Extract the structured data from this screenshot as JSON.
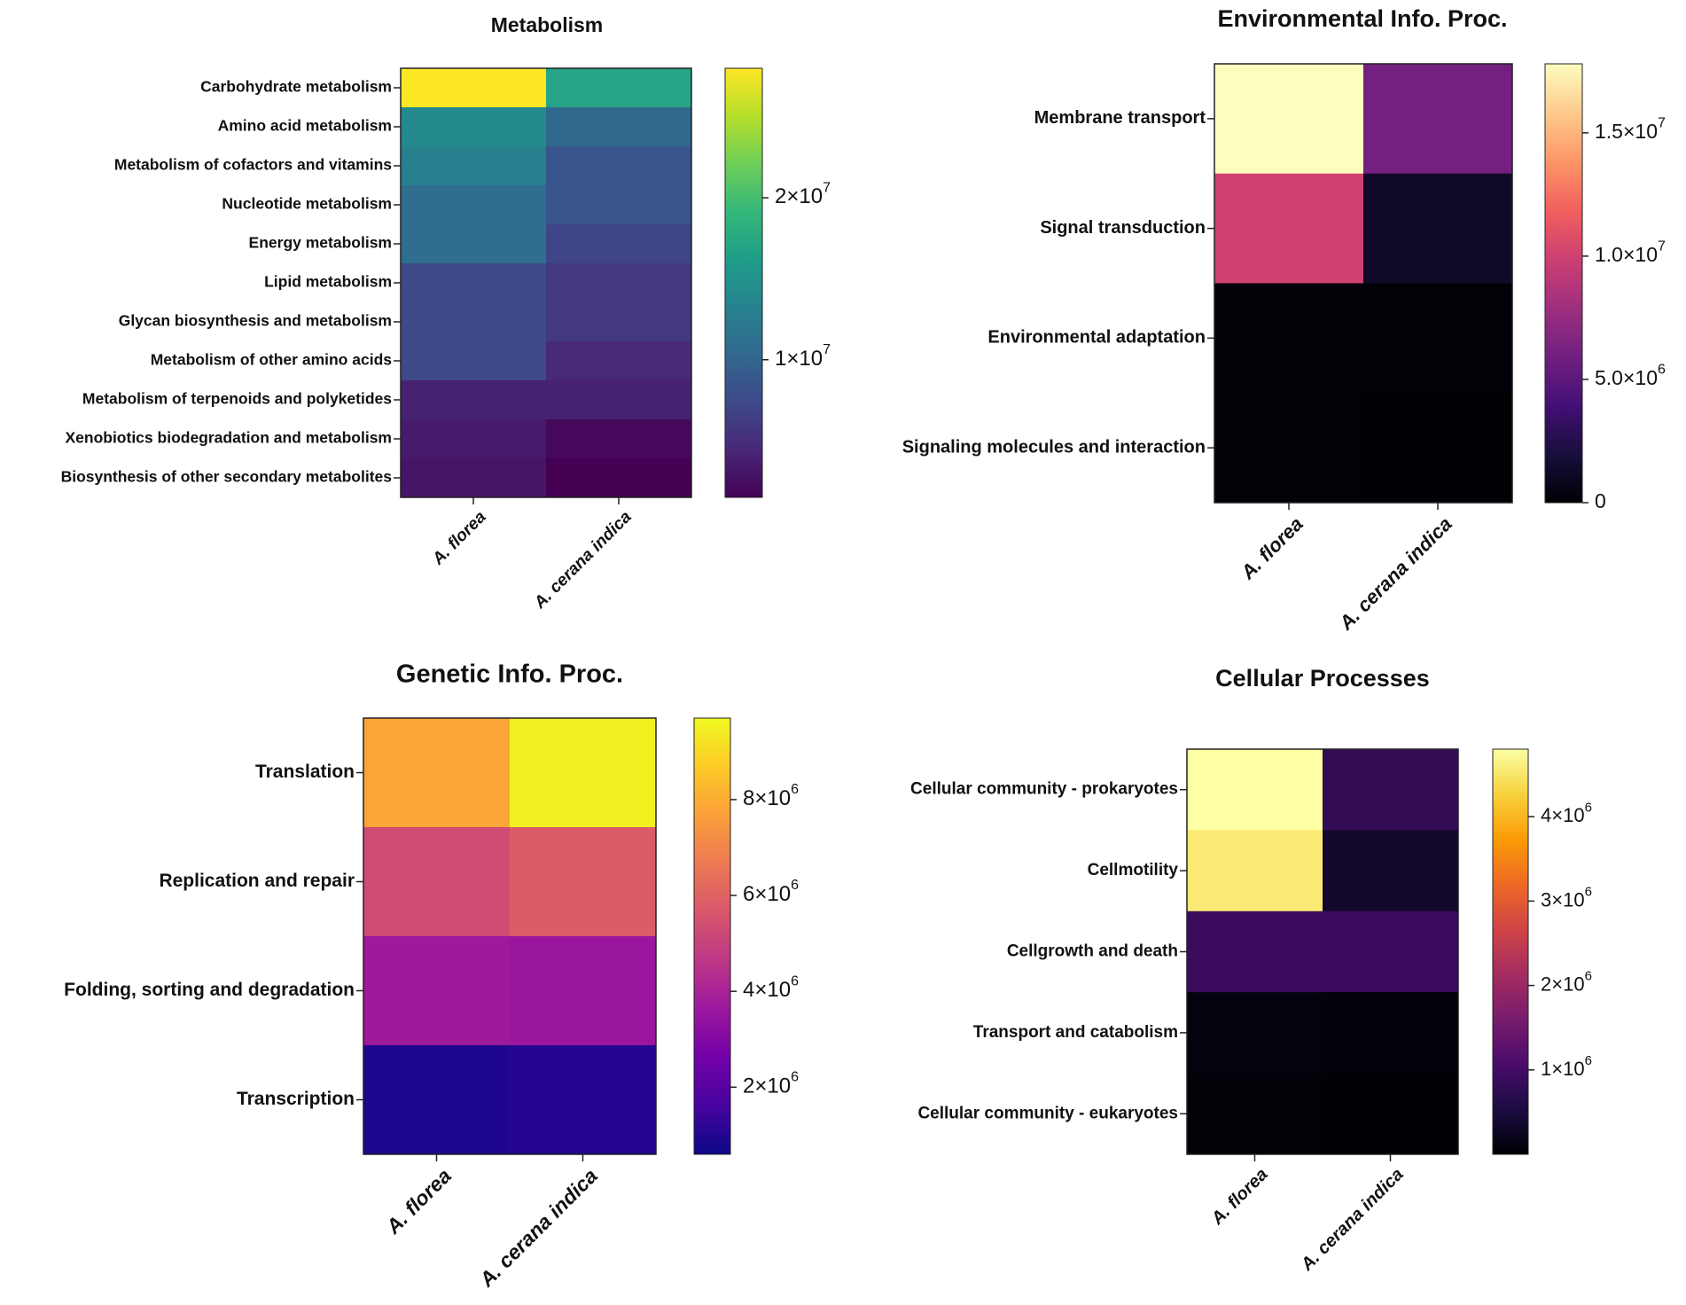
{
  "chart_data": [
    {
      "type": "heatmap",
      "title": "Metabolism",
      "columns": [
        "A. florea",
        "A. cerana indica"
      ],
      "rows": [
        "Carbohydrate metabolism",
        "Amino acid metabolism",
        "Metabolism of cofactors and vitamins",
        "Nucleotide metabolism",
        "Energy metabolism",
        "Lipid metabolism",
        "Glycan biosynthesis and metabolism",
        "Metabolism of other amino acids",
        "Metabolism of terpenoids and polyketides",
        "Xenobiotics biodegradation and metabolism",
        "Biosynthesis of other secondary metabolites"
      ],
      "values": [
        [
          28000000,
          17000000
        ],
        [
          14000000,
          10500000
        ],
        [
          13000000,
          8500000
        ],
        [
          11000000,
          8500000
        ],
        [
          11000000,
          7000000
        ],
        [
          7500000,
          6000000
        ],
        [
          7500000,
          6000000
        ],
        [
          7500000,
          4500000
        ],
        [
          4000000,
          4000000
        ],
        [
          3500000,
          2000000
        ],
        [
          3000000,
          1500000
        ]
      ],
      "colormap": "viridis",
      "colorbar": {
        "range": [
          1500000,
          28000000
        ],
        "ticks": [
          {
            "value": 10000000,
            "label": "1×10",
            "exp": "7"
          },
          {
            "value": 20000000,
            "label": "2×10",
            "exp": "7"
          }
        ]
      }
    },
    {
      "type": "heatmap",
      "title": "Environmental Info. Proc.",
      "columns": [
        "A. florea",
        "A. cerana indica"
      ],
      "rows": [
        "Membrane transport",
        "Signal transduction",
        "Environmental adaptation",
        "Signaling molecules and interaction"
      ],
      "values": [
        [
          17800000,
          6000000
        ],
        [
          10000000,
          1300000
        ],
        [
          150000,
          100000
        ],
        [
          80000,
          50000
        ]
      ],
      "colormap": "magma",
      "colorbar": {
        "range": [
          0,
          17800000
        ],
        "ticks": [
          {
            "value": 0,
            "label": "0",
            "exp": ""
          },
          {
            "value": 5000000,
            "label": "5.0×10",
            "exp": "6"
          },
          {
            "value": 10000000,
            "label": "1.0×10",
            "exp": "7"
          },
          {
            "value": 15000000,
            "label": "1.5×10",
            "exp": "7"
          }
        ]
      }
    },
    {
      "type": "heatmap",
      "title": "Genetic Info. Proc.",
      "columns": [
        "A. florea",
        "A. cerana indica"
      ],
      "rows": [
        "Translation",
        "Replication and repair",
        "Folding, sorting and degradation",
        "Transcription"
      ],
      "values": [
        [
          7800000,
          9500000
        ],
        [
          5300000,
          5800000
        ],
        [
          3700000,
          3600000
        ],
        [
          900000,
          1000000
        ]
      ],
      "colormap": "plasma",
      "colorbar": {
        "range": [
          600000,
          9700000
        ],
        "ticks": [
          {
            "value": 2000000,
            "label": "2×10",
            "exp": "6"
          },
          {
            "value": 4000000,
            "label": "4×10",
            "exp": "6"
          },
          {
            "value": 6000000,
            "label": "6×10",
            "exp": "6"
          },
          {
            "value": 8000000,
            "label": "8×10",
            "exp": "6"
          }
        ]
      }
    },
    {
      "type": "heatmap",
      "title": "Cellular Processes",
      "columns": [
        "A. florea",
        "A. cerana indica"
      ],
      "rows": [
        "Cellular community - prokaryotes",
        "Cellmotility",
        "Cellgrowth and death",
        "Transport and catabolism",
        "Cellular community - eukaryotes"
      ],
      "values": [
        [
          4800000,
          800000
        ],
        [
          4550000,
          350000
        ],
        [
          900000,
          900000
        ],
        [
          80000,
          60000
        ],
        [
          30000,
          20000
        ]
      ],
      "colormap": "inferno",
      "colorbar": {
        "range": [
          0,
          4800000
        ],
        "ticks": [
          {
            "value": 1000000,
            "label": "1×10",
            "exp": "6"
          },
          {
            "value": 2000000,
            "label": "2×10",
            "exp": "6"
          },
          {
            "value": 3000000,
            "label": "3×10",
            "exp": "6"
          },
          {
            "value": 4000000,
            "label": "4×10",
            "exp": "6"
          }
        ]
      }
    }
  ]
}
